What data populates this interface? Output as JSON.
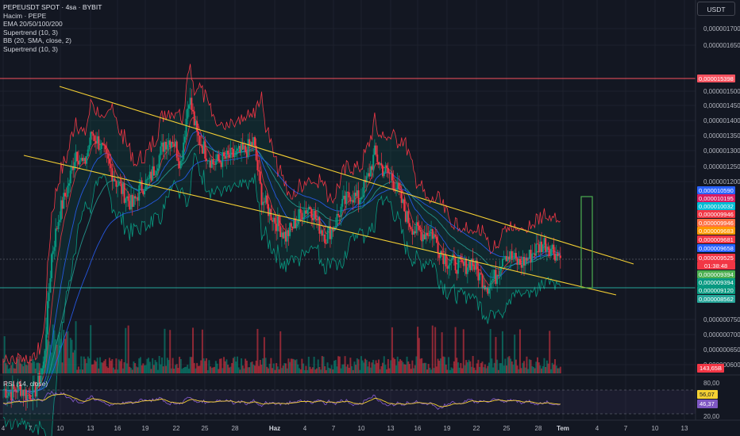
{
  "header": {
    "title": "PEPEUSDT SPOT · 4sa · BYBIT",
    "indicators": [
      "Hacim · PEPE",
      "EMA 20/50/100/200",
      "Supertrend (10, 3)",
      "BB (20, SMA, close, 2)",
      "Supertrend (10, 3)"
    ],
    "currency_button": "USDT"
  },
  "rsi": {
    "label": "RSI (14, close)",
    "ticks": [
      "80,00",
      "20,00"
    ],
    "badges": [
      {
        "text": "56,07",
        "color": "#f5d033",
        "text_color": "#131722"
      },
      {
        "text": "46,37",
        "color": "#7e57c2",
        "text_color": "#ffffff"
      }
    ]
  },
  "price_axis": {
    "ticks": [
      "0,0000017000",
      "0,0000016500",
      "0,0000015000",
      "0,0000014500",
      "0,0000014000",
      "0,0000013500",
      "0,0000013000",
      "0,0000012500",
      "0,0000012000",
      "0,0000007500",
      "0,0000007000",
      "0,0000006500",
      "0,0000006000"
    ],
    "current_time": "01:38:48",
    "volume_badge": {
      "text": "143,65B",
      "color": "#f23645"
    },
    "badges": [
      {
        "text": "0,000015398",
        "color": "#f7525f"
      },
      {
        "text": "0,000010590",
        "color": "#2962ff"
      },
      {
        "text": "0,000010195",
        "color": "#d81b60"
      },
      {
        "text": "0,000010032",
        "color": "#00bcd4"
      },
      {
        "text": "0,000009946",
        "color": "#f23645"
      },
      {
        "text": "0,000009946",
        "color": "#ff7043"
      },
      {
        "text": "0,000009683",
        "color": "#ff9800"
      },
      {
        "text": "0,000009681",
        "color": "#f23645"
      },
      {
        "text": "0,000009658",
        "color": "#2962ff"
      },
      {
        "text": "0,000009525",
        "color": "#f23645"
      },
      {
        "text": "0,000009394",
        "color": "#4caf50"
      },
      {
        "text": "0,000009394",
        "color": "#089981"
      },
      {
        "text": "0,000009120",
        "color": "#089981"
      },
      {
        "text": "0,000008562",
        "color": "#26a69a"
      }
    ]
  },
  "time_axis": {
    "ticks": [
      "4",
      "7",
      "10",
      "13",
      "16",
      "19",
      "22",
      "25",
      "28",
      "Haz",
      "4",
      "7",
      "10",
      "13",
      "16",
      "19",
      "22",
      "25",
      "28",
      "Tem",
      "4",
      "7",
      "10",
      "13"
    ]
  },
  "chart_data": {
    "type": "candlestick",
    "symbol": "PEPEUSDT",
    "interval": "4sa",
    "exchange": "BYBIT",
    "price_range": [
      5.5e-06,
      1.76e-05
    ],
    "horizontal_levels": [
      {
        "price": 1.5398e-05,
        "color": "#f7525f"
      },
      {
        "price": 8.562e-06,
        "color": "#26a69a"
      }
    ],
    "trendlines": [
      {
        "from": {
          "date": "May 10",
          "price": 1.53e-05
        },
        "to": {
          "date": "Jul 08",
          "price": 9.2e-06
        },
        "color": "#f5d033"
      },
      {
        "from": {
          "date": "May 04",
          "price": 1.32e-05
        },
        "to": {
          "date": "Jul 09",
          "price": 7.8e-06
        },
        "color": "#f5d033"
      }
    ],
    "target_box": {
      "from": 8.562e-06,
      "to": 1.17e-05,
      "color": "#4caf50"
    },
    "close_series": [
      5.2,
      5.1,
      5.3,
      5.0,
      5.2,
      6.0,
      9.6,
      11.0,
      11.8,
      13.0,
      12.5,
      13.6,
      13.2,
      12.6,
      12.0,
      11.6,
      11.2,
      11.8,
      12.0,
      12.6,
      13.3,
      13.4,
      12.6,
      14.8,
      13.5,
      13.0,
      12.6,
      12.7,
      12.8,
      12.9,
      13.0,
      13.3,
      11.5,
      11.0,
      10.6,
      10.2,
      10.6,
      11.0,
      11.2,
      10.6,
      10.2,
      10.6,
      11.2,
      11.6,
      11.4,
      12.0,
      12.9,
      12.4,
      12.2,
      11.6,
      10.8,
      10.4,
      10.3,
      10.4,
      9.8,
      9.4,
      9.3,
      9.2,
      9.4,
      8.9,
      8.6,
      8.9,
      9.7,
      9.5,
      9.3,
      9.5,
      9.8,
      10.0,
      9.8,
      9.5
    ]
  }
}
